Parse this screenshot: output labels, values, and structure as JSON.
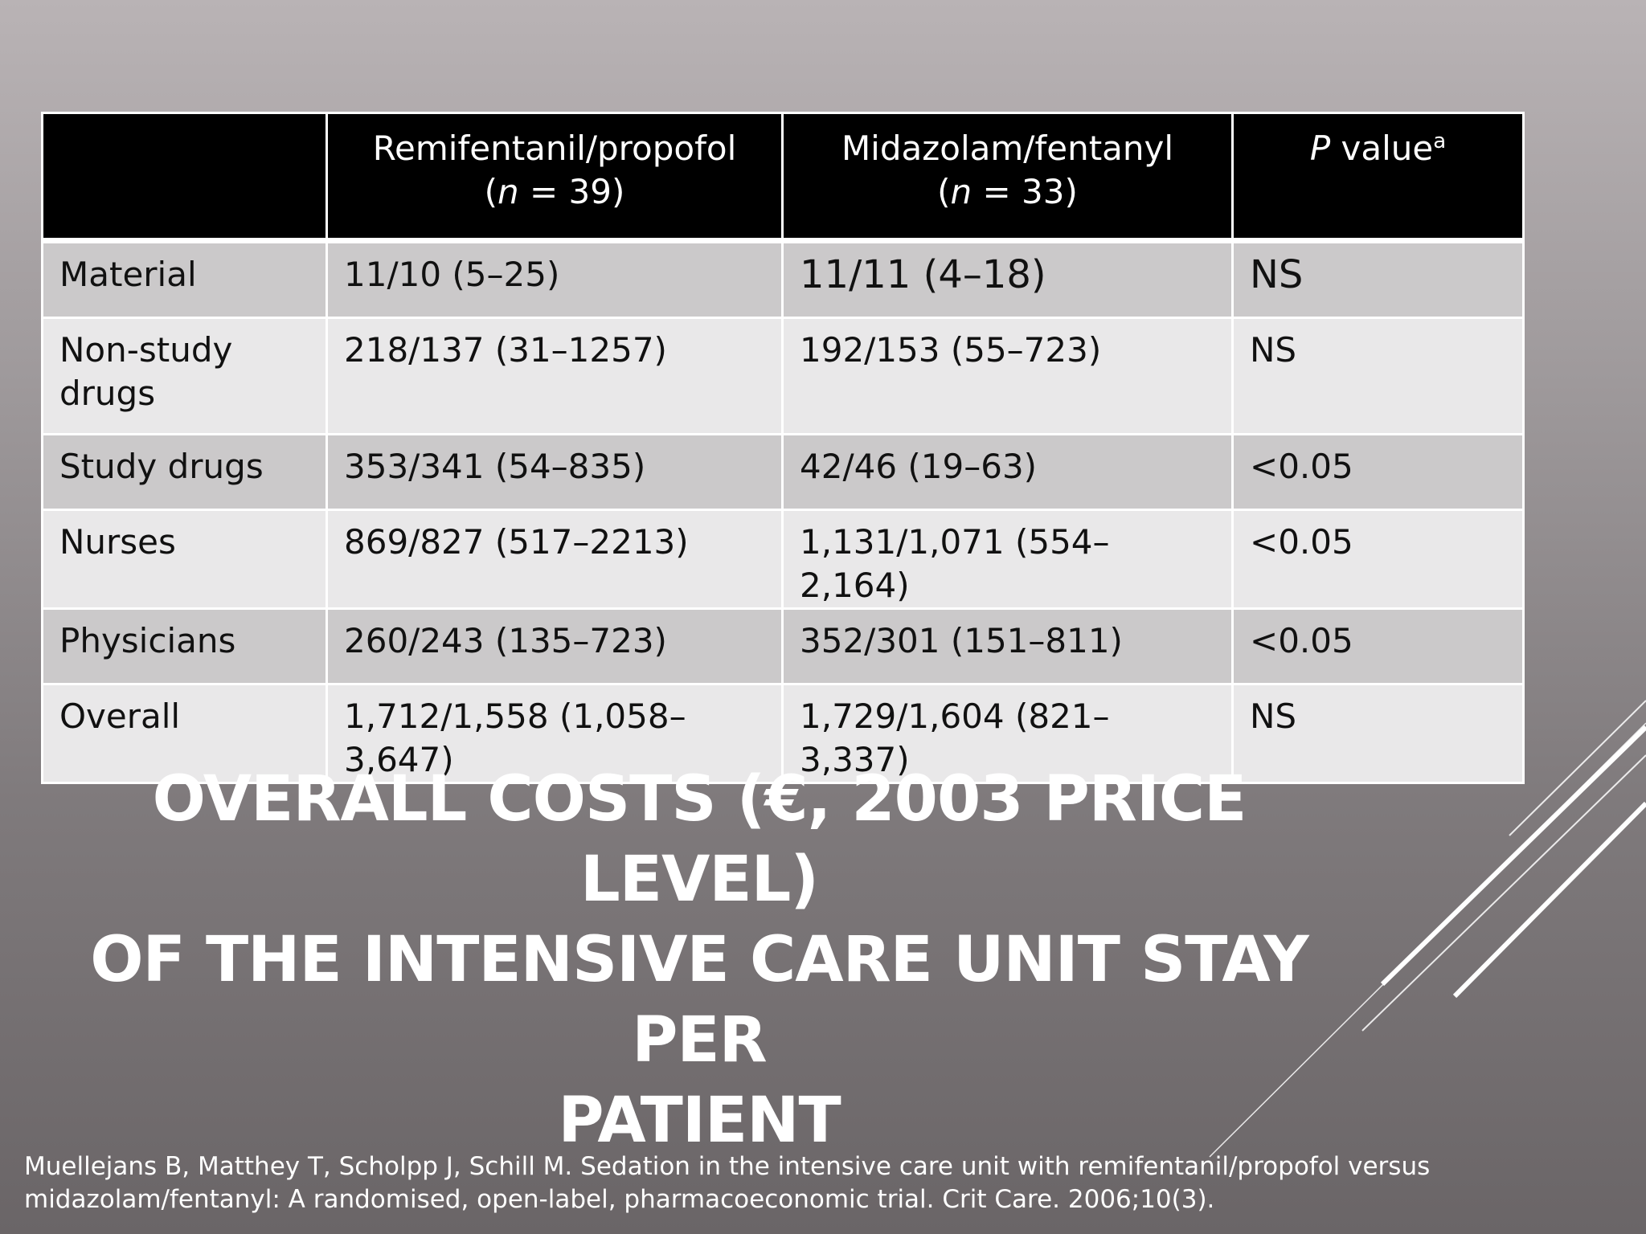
{
  "table": {
    "header": {
      "blank": "",
      "col1_name": "Remifentanil/propofol",
      "col1_n_symbol": "n",
      "col1_n_value": " = 39)",
      "col2_name": "Midazolam/fentanyl",
      "col2_n_symbol": "n",
      "col2_n_value": " = 33)",
      "col3_p": "P",
      "col3_value": " value",
      "col3_sup": "a"
    },
    "rows": [
      {
        "label": "Material",
        "remi": "11/10 (5–25)",
        "mida": "11/11 (4–18)",
        "p": "NS"
      },
      {
        "label": "Non-study drugs",
        "remi": "218/137 (31–1257)",
        "mida": "192/153 (55–723)",
        "p": "NS"
      },
      {
        "label": "Study drugs",
        "remi": "353/341 (54–835)",
        "mida": "42/46 (19–63)",
        "p": "<0.05"
      },
      {
        "label": "Nurses",
        "remi": "869/827 (517–2213)",
        "mida": "1,131/1,071 (554–2,164)",
        "p": "<0.05"
      },
      {
        "label": "Physicians",
        "remi": "260/243 (135–723)",
        "mida": "352/301 (151–811)",
        "p": "<0.05"
      },
      {
        "label": "Overall",
        "remi": "1,712/1,558 (1,058–3,647)",
        "mida": "1,729/1,604 (821–3,337)",
        "p": "NS"
      }
    ]
  },
  "title": {
    "line1": "OVERALL COSTS (€, 2003 PRICE LEVEL)",
    "line2": "OF THE INTENSIVE CARE UNIT STAY PER",
    "line3": "PATIENT"
  },
  "citation": {
    "line1": "Muellejans B, Matthey T, Scholpp J, Schill M. Sedation in the intensive care unit with remifentanil/propofol versus",
    "line2": "midazolam/fentanyl: A randomised, open-label, pharmacoeconomic trial. Crit Care. 2006;10(3)."
  },
  "colors": {
    "header_bg": "#000000",
    "row_odd_bg": "#cbc9ca",
    "row_even_bg": "#e9e8e9",
    "title_text": "#ffffff"
  }
}
